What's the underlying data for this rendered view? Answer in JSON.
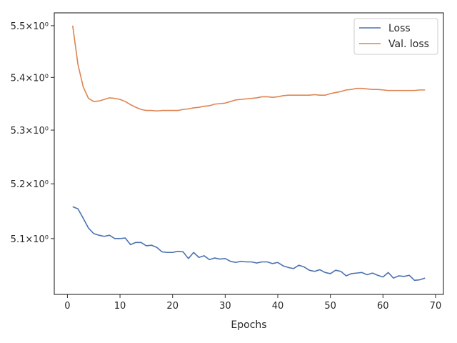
{
  "chart_data": {
    "type": "line",
    "title": "",
    "xlabel": "Epochs",
    "ylabel": "",
    "xlim": [
      -2.5,
      71.5
    ],
    "ylim": [
      5.0,
      5.525
    ],
    "y_scale": "log",
    "grid": false,
    "legend": "top-right",
    "x_ticks": [
      0,
      10,
      20,
      30,
      40,
      50,
      60,
      70
    ],
    "y_ticks": [
      {
        "value": 5.1,
        "label": "5.1×10⁰"
      },
      {
        "value": 5.2,
        "label": "5.2×10⁰"
      },
      {
        "value": 5.3,
        "label": "5.3×10⁰"
      },
      {
        "value": 5.4,
        "label": "5.4×10⁰"
      },
      {
        "value": 5.5,
        "label": "5.5×10⁰"
      }
    ],
    "x": [
      1,
      2,
      3,
      4,
      5,
      6,
      7,
      8,
      9,
      10,
      11,
      12,
      13,
      14,
      15,
      16,
      17,
      18,
      19,
      20,
      21,
      22,
      23,
      24,
      25,
      26,
      27,
      28,
      29,
      30,
      31,
      32,
      33,
      34,
      35,
      36,
      37,
      38,
      39,
      40,
      41,
      42,
      43,
      44,
      45,
      46,
      47,
      48,
      49,
      50,
      51,
      52,
      53,
      54,
      55,
      56,
      57,
      58,
      59,
      60,
      61,
      62,
      63,
      64,
      65,
      66,
      67,
      68
    ],
    "series": [
      {
        "name": "Loss",
        "color": "#4c72b0",
        "values": [
          5.158,
          5.154,
          5.137,
          5.119,
          5.109,
          5.106,
          5.104,
          5.106,
          5.1,
          5.1,
          5.101,
          5.089,
          5.093,
          5.093,
          5.087,
          5.088,
          5.084,
          5.076,
          5.075,
          5.075,
          5.077,
          5.076,
          5.064,
          5.075,
          5.066,
          5.069,
          5.062,
          5.065,
          5.063,
          5.064,
          5.059,
          5.057,
          5.059,
          5.058,
          5.058,
          5.056,
          5.058,
          5.058,
          5.055,
          5.057,
          5.051,
          5.048,
          5.046,
          5.052,
          5.049,
          5.043,
          5.041,
          5.044,
          5.039,
          5.037,
          5.043,
          5.041,
          5.033,
          5.037,
          5.038,
          5.039,
          5.035,
          5.038,
          5.034,
          5.031,
          5.039,
          5.029,
          5.033,
          5.032,
          5.034,
          5.025,
          5.026,
          5.029
        ]
      },
      {
        "name": "Val. loss",
        "color": "#dd8452",
        "values": [
          5.5,
          5.425,
          5.382,
          5.36,
          5.354,
          5.355,
          5.358,
          5.361,
          5.36,
          5.358,
          5.354,
          5.348,
          5.343,
          5.339,
          5.337,
          5.337,
          5.336,
          5.337,
          5.337,
          5.337,
          5.337,
          5.339,
          5.34,
          5.342,
          5.343,
          5.345,
          5.346,
          5.349,
          5.35,
          5.351,
          5.354,
          5.357,
          5.358,
          5.359,
          5.36,
          5.361,
          5.363,
          5.363,
          5.362,
          5.363,
          5.365,
          5.366,
          5.366,
          5.366,
          5.366,
          5.366,
          5.367,
          5.366,
          5.366,
          5.369,
          5.371,
          5.373,
          5.376,
          5.377,
          5.379,
          5.379,
          5.378,
          5.377,
          5.377,
          5.376,
          5.375,
          5.375,
          5.375,
          5.375,
          5.375,
          5.375,
          5.376,
          5.376
        ]
      }
    ]
  }
}
